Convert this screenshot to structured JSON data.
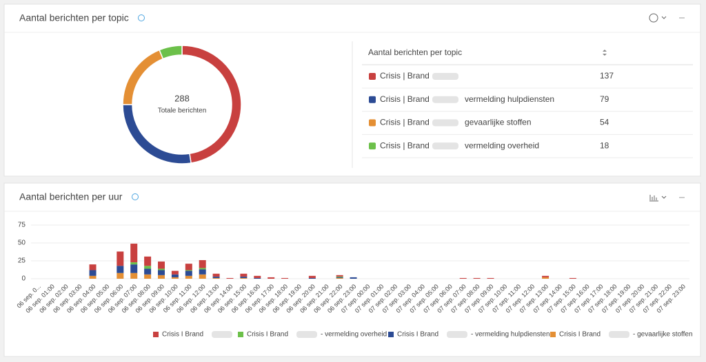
{
  "chart_data": [
    {
      "type": "pie",
      "title": "Aantal berichten per topic",
      "center_value": 288,
      "center_label": "Totale berichten",
      "table_header": "Aantal berichten per topic",
      "categories": [
        "Crisis | Brand",
        "Crisis | Brand",
        "Crisis | Brand",
        "Crisis | Brand"
      ],
      "suffixes": [
        null,
        "vermelding hulpdiensten",
        "gevaarlijke stoffen",
        "vermelding overheid"
      ],
      "values": [
        137,
        79,
        54,
        18
      ],
      "colors": [
        "#c8403f",
        "#2c4b94",
        "#e48f34",
        "#6cc04a"
      ]
    },
    {
      "type": "bar",
      "stacked": true,
      "title": "Aantal berichten per uur",
      "grid": true,
      "ylim": [
        0,
        75
      ],
      "yticks": [
        0,
        25,
        50,
        75
      ],
      "categories": [
        "06 sep. 0...",
        "06 sep. 01:00",
        "06 sep. 02:00",
        "06 sep. 03:00",
        "06 sep. 04:00",
        "06 sep. 05:00",
        "06 sep. 06:00",
        "06 sep. 07:00",
        "06 sep. 08:00",
        "06 sep. 09:00",
        "06 sep. 10:00",
        "06 sep. 11:00",
        "06 sep. 12:00",
        "06 sep. 13:00",
        "06 sep. 14:00",
        "06 sep. 15:00",
        "06 sep. 16:00",
        "06 sep. 17:00",
        "06 sep. 18:00",
        "06 sep. 19:00",
        "06 sep. 20:00",
        "06 sep. 21:00",
        "06 sep. 22:00",
        "06 sep. 23:00",
        "07 sep. 00:00",
        "07 sep. 01:00",
        "07 sep. 02:00",
        "07 sep. 03:00",
        "07 sep. 04:00",
        "07 sep. 05:00",
        "07 sep. 06:00",
        "07 sep. 07:00",
        "07 sep. 08:00",
        "07 sep. 09:00",
        "07 sep. 10:00",
        "07 sep. 11:00",
        "07 sep. 12:00",
        "07 sep. 13:00",
        "07 sep. 14:00",
        "07 sep. 15:00",
        "07 sep. 16:00",
        "07 sep. 17:00",
        "07 sep. 18:00",
        "07 sep. 19:00",
        "07 sep. 20:00",
        "07 sep. 21:00",
        "07 sep. 22:00",
        "07 sep. 23:00"
      ],
      "series": [
        {
          "name": "Crisis I Brand",
          "color": "#c8403f",
          "values": [
            0,
            0,
            0,
            0,
            8,
            0,
            20,
            26,
            13,
            10,
            5,
            9,
            11,
            4,
            1,
            4,
            3,
            2,
            1,
            0,
            3,
            0,
            2,
            0,
            0,
            0,
            0,
            0,
            0,
            0,
            0,
            1,
            1,
            1,
            0,
            0,
            0,
            2,
            0,
            1,
            0,
            0,
            0,
            0,
            0,
            0,
            0,
            0
          ]
        },
        {
          "name": "Crisis I Brand",
          "suffix": "- vermelding overheid",
          "color": "#6cc04a",
          "values": [
            0,
            0,
            0,
            0,
            0,
            0,
            0,
            3,
            4,
            2,
            0,
            1,
            2,
            0,
            0,
            0,
            0,
            0,
            0,
            0,
            0,
            0,
            1,
            0,
            0,
            0,
            0,
            0,
            0,
            0,
            0,
            0,
            0,
            0,
            0,
            0,
            0,
            0,
            0,
            0,
            0,
            0,
            0,
            0,
            0,
            0,
            0,
            0
          ]
        },
        {
          "name": "Crisis I Brand",
          "suffix": "- vermelding hulpdiensten",
          "color": "#2c4b94",
          "values": [
            0,
            0,
            0,
            0,
            8,
            0,
            10,
            12,
            8,
            7,
            4,
            7,
            7,
            2,
            0,
            2,
            1,
            0,
            0,
            0,
            1,
            0,
            1,
            2,
            0,
            0,
            0,
            0,
            0,
            0,
            0,
            0,
            0,
            0,
            0,
            0,
            0,
            0,
            0,
            0,
            0,
            0,
            0,
            0,
            0,
            0,
            0,
            0
          ]
        },
        {
          "name": "Crisis I Brand",
          "suffix": "- gevaarlijke stoffen",
          "color": "#e48f34",
          "values": [
            0,
            0,
            0,
            0,
            4,
            0,
            8,
            8,
            6,
            5,
            2,
            4,
            6,
            1,
            0,
            1,
            0,
            0,
            0,
            0,
            0,
            0,
            1,
            0,
            0,
            0,
            0,
            0,
            0,
            0,
            0,
            0,
            0,
            0,
            0,
            0,
            0,
            2,
            0,
            0,
            0,
            0,
            0,
            0,
            0,
            0,
            0,
            0
          ]
        }
      ]
    }
  ]
}
